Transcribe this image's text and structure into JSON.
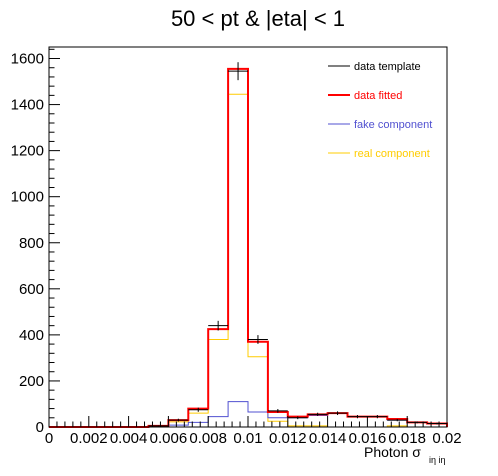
{
  "chart_data": {
    "type": "histogram",
    "title": "50 < pt & |eta| < 1",
    "xlabel_main": "Photon σ",
    "xlabel_sub": "iη iη",
    "xlim": [
      0,
      0.02
    ],
    "ylim": [
      0,
      1650
    ],
    "bin_edges": [
      0,
      0.001,
      0.002,
      0.003,
      0.004,
      0.005,
      0.006,
      0.007,
      0.008,
      0.009,
      0.01,
      0.011,
      0.012,
      0.013,
      0.014,
      0.015,
      0.016,
      0.017,
      0.018,
      0.019,
      0.02
    ],
    "x_ticks": [
      {
        "v": 0,
        "label": "0"
      },
      {
        "v": 0.002,
        "label": "0.002"
      },
      {
        "v": 0.004,
        "label": "0.004"
      },
      {
        "v": 0.006,
        "label": "0.006"
      },
      {
        "v": 0.008,
        "label": "0.008"
      },
      {
        "v": 0.01,
        "label": "0.01"
      },
      {
        "v": 0.012,
        "label": "0.012"
      },
      {
        "v": 0.014,
        "label": "0.014"
      },
      {
        "v": 0.016,
        "label": "0.016"
      },
      {
        "v": 0.018,
        "label": "0.018"
      },
      {
        "v": 0.02,
        "label": "0.02"
      }
    ],
    "y_ticks": [
      {
        "v": 0,
        "label": "0"
      },
      {
        "v": 200,
        "label": "200"
      },
      {
        "v": 400,
        "label": "400"
      },
      {
        "v": 600,
        "label": "600"
      },
      {
        "v": 800,
        "label": "800"
      },
      {
        "v": 1000,
        "label": "1000"
      },
      {
        "v": 1200,
        "label": "1200"
      },
      {
        "v": 1400,
        "label": "1400"
      },
      {
        "v": 1600,
        "label": "1600"
      }
    ],
    "series": [
      {
        "name": "data template",
        "style": "points",
        "color": "#000000",
        "values": [
          0,
          0,
          0,
          0,
          0,
          5,
          30,
          75,
          440,
          1545,
          380,
          70,
          40,
          55,
          60,
          45,
          45,
          30,
          20,
          15
        ],
        "errors": [
          0,
          0,
          0,
          0,
          0,
          2,
          6,
          9,
          21,
          39,
          19,
          8,
          6,
          7,
          8,
          7,
          7,
          5,
          4,
          4
        ]
      },
      {
        "name": "data fitted",
        "style": "step",
        "color": "#ff0000",
        "values": [
          0,
          0,
          0,
          0,
          0,
          5,
          30,
          80,
          425,
          1555,
          370,
          65,
          45,
          55,
          60,
          45,
          45,
          35,
          20,
          15
        ]
      },
      {
        "name": "fake component",
        "style": "step",
        "color": "#5050d0",
        "values": [
          0,
          0,
          0,
          0,
          0,
          2,
          8,
          20,
          45,
          110,
          65,
          40,
          40,
          50,
          60,
          45,
          45,
          30,
          20,
          15
        ]
      },
      {
        "name": "real component",
        "style": "step",
        "color": "#ffcc00",
        "values": [
          0,
          0,
          0,
          0,
          0,
          3,
          22,
          60,
          380,
          1445,
          305,
          25,
          5,
          5,
          0,
          0,
          0,
          5,
          0,
          0
        ]
      }
    ],
    "legend": {
      "position": "top-right"
    }
  }
}
